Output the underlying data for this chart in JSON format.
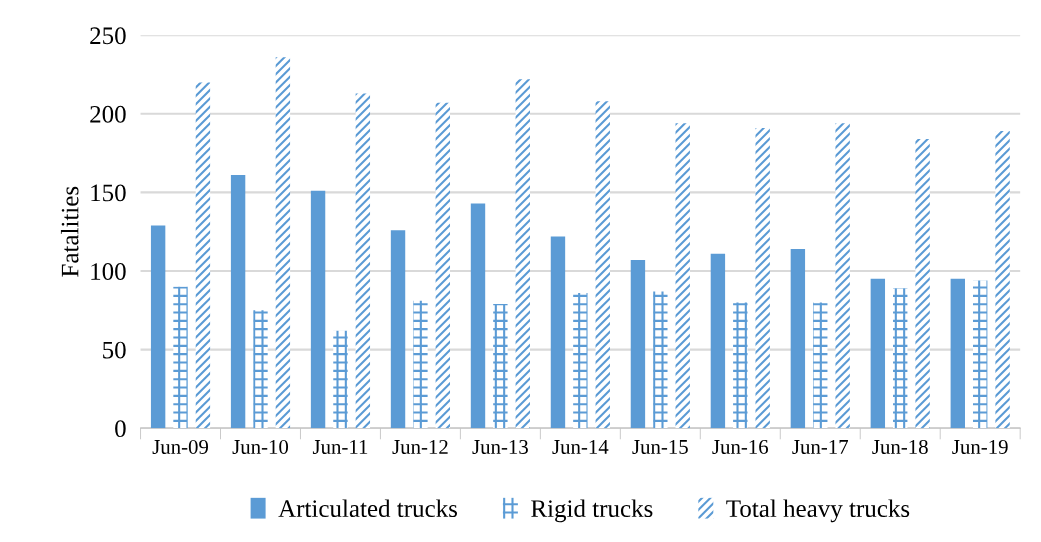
{
  "chart_data": {
    "type": "bar",
    "ylabel": "Fatalities",
    "categories": [
      "Jun-09",
      "Jun-10",
      "Jun-11",
      "Jun-12",
      "Jun-13",
      "Jun-14",
      "Jun-15",
      "Jun-16",
      "Jun-17",
      "Jun-18",
      "Jun-19"
    ],
    "series": [
      {
        "name": "Articulated trucks",
        "color": "#5b9bd5",
        "values": [
          129,
          161,
          151,
          126,
          143,
          122,
          107,
          111,
          114,
          95,
          95
        ]
      },
      {
        "name": "Rigid trucks",
        "color": "#5b9bd5",
        "values": [
          90,
          75,
          62,
          81,
          79,
          86,
          87,
          80,
          80,
          89,
          94
        ]
      },
      {
        "name": "Total heavy trucks",
        "color": "#5b9bd5",
        "values": [
          220,
          236,
          213,
          207,
          222,
          208,
          194,
          191,
          194,
          184,
          189
        ]
      }
    ],
    "ylim": [
      0,
      250
    ],
    "yticks": [
      0,
      50,
      100,
      150,
      200,
      250
    ],
    "grid": "y",
    "legend": "bottom"
  }
}
